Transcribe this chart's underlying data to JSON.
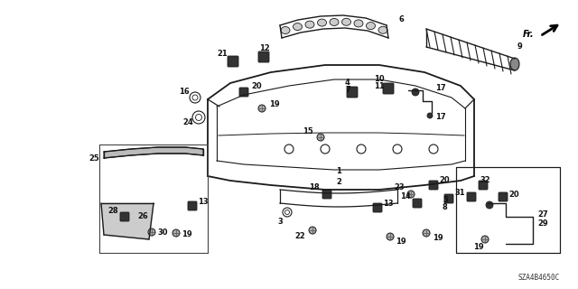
{
  "background_color": "#ffffff",
  "diagram_code": "SZA4B4650C",
  "line_color": "#1a1a1a",
  "label_fontsize": 6.0,
  "figsize": [
    6.4,
    3.2
  ],
  "dpi": 100
}
